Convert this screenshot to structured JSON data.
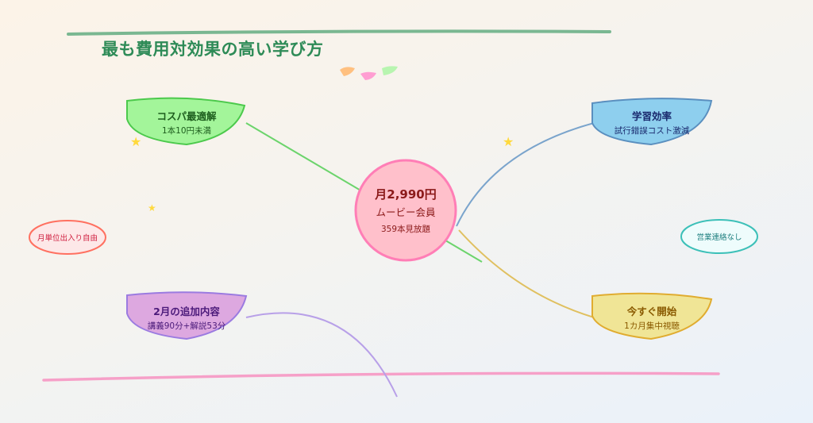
{
  "title": "最も費用対効果の高い学び方",
  "center": {
    "price": "月2,990円",
    "plan": "ムービー会員",
    "catalog": "359本見放題",
    "color": "#ffc0cb",
    "border": "#ff7eb6"
  },
  "nodes": [
    {
      "title": "コスパ最適解",
      "subtitle": "1本10円未満",
      "fill": "#a3f59a",
      "stroke": "#4cc94c",
      "text": "#1e5e1e"
    },
    {
      "title": "学習効率",
      "subtitle": "試行錯誤コスト激減",
      "fill": "#8ecfee",
      "stroke": "#5a8fbf",
      "text": "#1a2a6e"
    },
    {
      "title": "2月の追加内容",
      "subtitle": "講義90分+解説53分",
      "fill": "#dda8e0",
      "stroke": "#9b7be0",
      "text": "#4b1a7a"
    },
    {
      "title": "今すぐ開始",
      "subtitle": "1カ月集中視聴",
      "fill": "#f0e596",
      "stroke": "#e0ac30",
      "text": "#8a5a00"
    }
  ],
  "tags": [
    {
      "label": "月単位出入り自由",
      "fill": "#fde8e8",
      "stroke": "#ff7060",
      "text": "#d02040"
    },
    {
      "label": "営業連絡なし",
      "fill": "#eefcfc",
      "stroke": "#3cc0b8",
      "text": "#208080"
    }
  ],
  "decor": {
    "star_color": "#ffd93d",
    "petal_colors": [
      "#ffc080",
      "#ff9ed2",
      "#b8f5b0"
    ],
    "top_rule": "#5aa87a",
    "bottom_rule": "#f6a0c8"
  }
}
